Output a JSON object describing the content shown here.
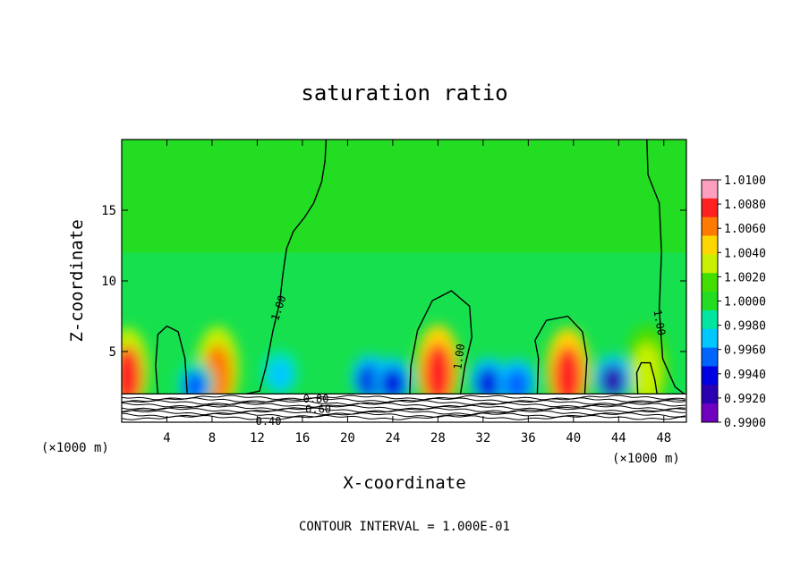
{
  "chart_data": {
    "type": "contour",
    "title": "saturation ratio",
    "xlabel": "X-coordinate",
    "ylabel": "Z-coordinate",
    "x_unit_left": "(×1000 m)",
    "x_unit_right": "(×1000 m)",
    "xlim": [
      0,
      50
    ],
    "ylim": [
      0,
      20
    ],
    "x_ticks": [
      4,
      8,
      12,
      16,
      20,
      24,
      28,
      32,
      36,
      40,
      44,
      48
    ],
    "y_ticks": [
      5,
      10,
      15
    ],
    "colorbar": {
      "min": 0.99,
      "max": 1.01,
      "levels": [
        "1.0100",
        "1.0080",
        "1.0060",
        "1.0040",
        "1.0020",
        "1.0000",
        "0.9980",
        "0.9960",
        "0.9940",
        "0.9920",
        "0.9900"
      ],
      "colors": [
        "#ff9fbf",
        "#ff2020",
        "#ff7a00",
        "#ffd700",
        "#c8f000",
        "#44dd00",
        "#22dd22",
        "#00e6a0",
        "#00c8ff",
        "#0064ff",
        "#0000e0",
        "#2a00b0",
        "#7000c0"
      ]
    },
    "contour_labels": [
      "1.00",
      "1.00",
      "1.00",
      "0.80",
      "0.60",
      "0.40"
    ],
    "blobs": [
      {
        "x": 0.5,
        "z": 2.6,
        "value": 1.0075
      },
      {
        "x": 8.5,
        "z": 2.7,
        "value": 1.0065
      },
      {
        "x": 28.0,
        "z": 2.8,
        "value": 1.008
      },
      {
        "x": 39.5,
        "z": 2.6,
        "value": 1.008
      },
      {
        "x": 46.5,
        "z": 2.8,
        "value": 1.0035
      },
      {
        "x": 22.0,
        "z": 2.6,
        "value": 0.994
      },
      {
        "x": 24.0,
        "z": 2.4,
        "value": 0.994
      },
      {
        "x": 32.5,
        "z": 2.4,
        "value": 0.9945
      },
      {
        "x": 35.0,
        "z": 2.3,
        "value": 0.995
      },
      {
        "x": 43.5,
        "z": 2.6,
        "value": 0.993
      },
      {
        "x": 6.5,
        "z": 2.2,
        "value": 0.996
      },
      {
        "x": 14.0,
        "z": 3.0,
        "value": 0.9975
      }
    ],
    "contour_interval_text": "CONTOUR INTERVAL = 1.000E-01"
  }
}
